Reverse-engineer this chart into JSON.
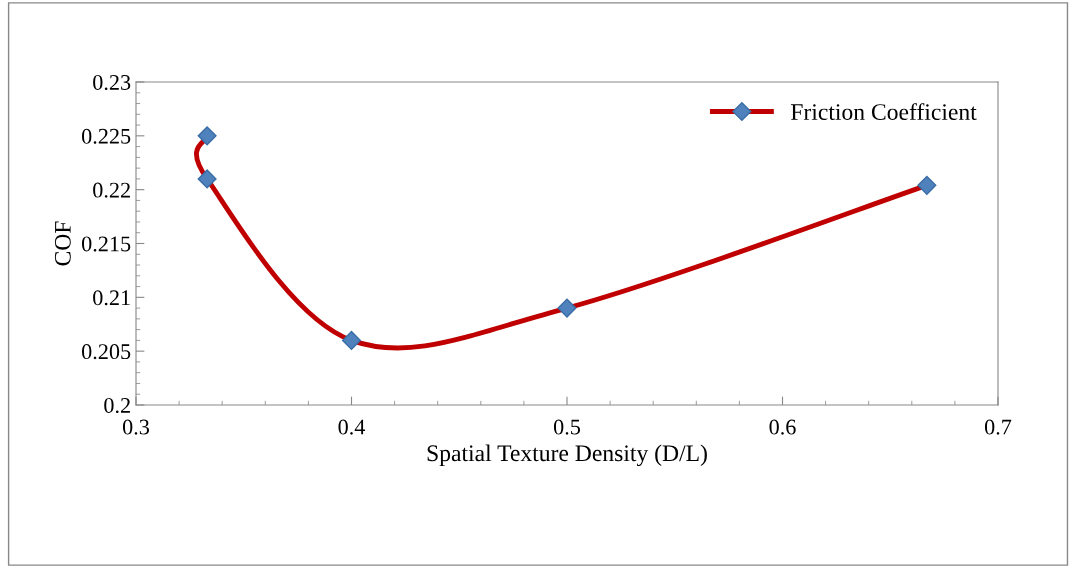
{
  "chart_data": {
    "type": "line",
    "xlabel": "Spatial Texture Density (D/L)",
    "ylabel": "COF",
    "series": [
      {
        "name": "Friction Coefficient",
        "color": "#c00000",
        "colors": [
          "#4f81bd",
          "#4f81bd",
          "#4f81bd",
          "#4f81bd",
          "#4f81bd"
        ],
        "x": [
          0.333,
          0.333,
          0.4,
          0.5,
          0.667
        ],
        "values": [
          0.225,
          0.221,
          0.206,
          0.209,
          0.2204
        ]
      }
    ],
    "xlim": [
      0.3,
      0.7
    ],
    "xticks": [
      0.3,
      0.4,
      0.5,
      0.6,
      0.7
    ],
    "ylim": [
      0.2,
      0.23
    ],
    "yticks": [
      0.2,
      0.205,
      0.21,
      0.215,
      0.22,
      0.225,
      0.23
    ],
    "marker": "diamond",
    "line_style": "solid",
    "grid": false,
    "legend": "top right"
  }
}
